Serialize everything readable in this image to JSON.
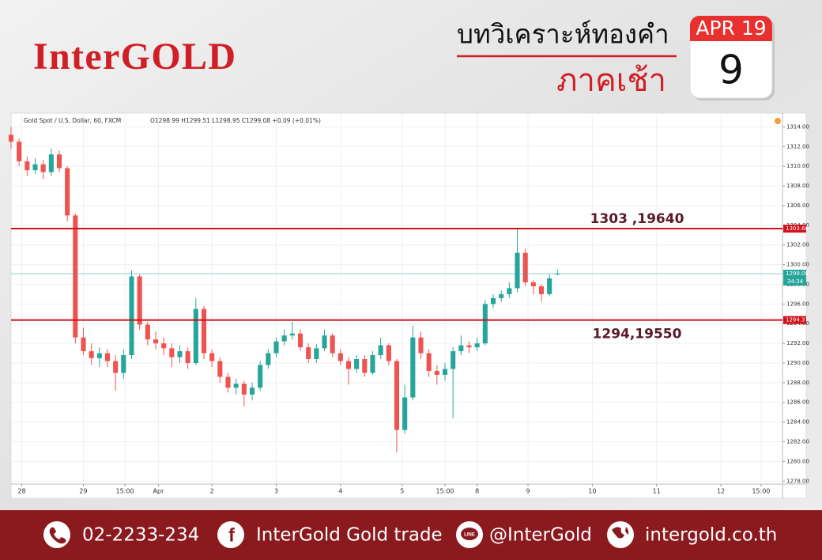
{
  "header": {
    "logo": "InterGOLD",
    "title": "บทวิเคราะห์ทองคำ",
    "subtitle": "ภาคเช้า",
    "calendar_month": "APR 19",
    "calendar_day": "9"
  },
  "chart_data": {
    "type": "candlestick",
    "symbol": "Gold Spot / U.S. Dollar, 60, FXCM",
    "ohlc_text": "O1298.99 H1299.51 L1298.95 C1299.08 +0.09 (+0.01%)",
    "up_color": "#26a69a",
    "down_color": "#ef5350",
    "grid": true,
    "xlim": [
      0,
      288
    ],
    "xticks": [
      {
        "value": 4,
        "label": "28"
      },
      {
        "value": 27,
        "label": "29"
      },
      {
        "value": 42.5,
        "label": "15:00"
      },
      {
        "value": 55,
        "label": "Apr"
      },
      {
        "value": 75,
        "label": "2"
      },
      {
        "value": 99,
        "label": "3"
      },
      {
        "value": 123,
        "label": "4"
      },
      {
        "value": 146,
        "label": "5"
      },
      {
        "value": 162,
        "label": "15:00"
      },
      {
        "value": 174,
        "label": "8"
      },
      {
        "value": 193,
        "label": "9"
      },
      {
        "value": 217,
        "label": "10"
      },
      {
        "value": 241,
        "label": "11"
      },
      {
        "value": 265,
        "label": "12"
      },
      {
        "value": 280,
        "label": "15:00"
      }
    ],
    "ylim": [
      1277.7,
      1315.4
    ],
    "yticks": [
      {
        "value": 1278,
        "label": "1278.00"
      },
      {
        "value": 1280,
        "label": "1280.00"
      },
      {
        "value": 1282,
        "label": "1282.00"
      },
      {
        "value": 1284,
        "label": "1284.00"
      },
      {
        "value": 1286,
        "label": "1286.00"
      },
      {
        "value": 1288,
        "label": "1288.00"
      },
      {
        "value": 1290,
        "label": "1290.00"
      },
      {
        "value": 1292,
        "label": "1292.00"
      },
      {
        "value": 1294,
        "label": "1294.00"
      },
      {
        "value": 1296,
        "label": "1296.00"
      },
      {
        "value": 1298,
        "label": "1298.00"
      },
      {
        "value": 1300,
        "label": "1300.00"
      },
      {
        "value": 1302,
        "label": "1302.00"
      },
      {
        "value": 1304,
        "label": "1304.00"
      },
      {
        "value": 1306,
        "label": "1306.00"
      },
      {
        "value": 1308,
        "label": "1308.00"
      },
      {
        "value": 1310,
        "label": "1310.00"
      },
      {
        "value": 1312,
        "label": "1312.00"
      },
      {
        "value": 1314,
        "label": "1314.00"
      }
    ],
    "x": [
      0,
      3,
      6,
      9,
      12,
      15,
      18,
      21,
      24,
      27,
      30,
      33,
      36,
      39,
      42,
      45,
      48,
      51,
      54,
      57,
      60,
      63,
      66,
      69,
      72,
      75,
      78,
      81,
      84,
      87,
      90,
      93,
      96,
      99,
      102,
      105,
      108,
      111,
      114,
      117,
      120,
      123,
      126,
      129,
      132,
      135,
      138,
      141,
      144,
      147,
      150,
      153,
      156,
      159,
      162,
      165,
      168,
      171,
      174,
      177,
      180,
      183,
      186,
      189,
      192,
      195,
      198,
      201,
      204
    ],
    "open": [
      1313.2,
      1312.5,
      1310.5,
      1309.6,
      1310.2,
      1309.4,
      1311.2,
      1309.8,
      1305.0,
      1292.6,
      1291.2,
      1290.5,
      1291.0,
      1290.2,
      1289.0,
      1290.8,
      1298.8,
      1293.9,
      1292.4,
      1292.0,
      1291.5,
      1290.6,
      1291.2,
      1290.0,
      1295.5,
      1291.0,
      1290.2,
      1288.6,
      1287.5,
      1287.9,
      1286.8,
      1287.5,
      1289.8,
      1291.0,
      1292.2,
      1292.8,
      1293.0,
      1291.6,
      1290.4,
      1291.5,
      1292.8,
      1291.0,
      1290.2,
      1289.4,
      1290.4,
      1289.0,
      1290.8,
      1291.8,
      1290.2,
      1283.2,
      1286.5,
      1292.6,
      1291.0,
      1289.2,
      1288.8,
      1289.4,
      1291.2,
      1291.8,
      1291.6,
      1292.0,
      1296.0,
      1296.6,
      1297.0,
      1297.6,
      1301.2,
      1298.2,
      1297.8,
      1297.0,
      1298.99
    ],
    "high": [
      1314.0,
      1312.8,
      1311.0,
      1310.8,
      1310.6,
      1311.8,
      1311.6,
      1310.0,
      1305.2,
      1293.6,
      1292.0,
      1291.6,
      1291.4,
      1290.8,
      1291.4,
      1299.4,
      1299.0,
      1294.2,
      1293.2,
      1292.6,
      1292.0,
      1291.8,
      1291.6,
      1296.6,
      1295.8,
      1291.4,
      1290.6,
      1289.0,
      1288.4,
      1288.2,
      1288.0,
      1290.2,
      1291.4,
      1292.6,
      1293.4,
      1294.2,
      1293.4,
      1292.0,
      1291.9,
      1293.4,
      1293.0,
      1291.4,
      1290.6,
      1290.8,
      1290.8,
      1291.2,
      1292.6,
      1292.0,
      1290.4,
      1287.8,
      1293.8,
      1293.2,
      1291.4,
      1289.8,
      1290.0,
      1291.6,
      1292.8,
      1292.2,
      1292.6,
      1296.4,
      1297.0,
      1297.4,
      1298.2,
      1303.6,
      1301.6,
      1298.4,
      1298.0,
      1299.0,
      1299.51
    ],
    "low": [
      1311.8,
      1310.0,
      1309.0,
      1309.2,
      1308.7,
      1309.0,
      1309.4,
      1304.4,
      1292.0,
      1290.8,
      1289.8,
      1289.6,
      1289.6,
      1287.2,
      1288.4,
      1290.4,
      1293.4,
      1291.8,
      1291.4,
      1290.8,
      1289.6,
      1290.0,
      1289.4,
      1289.8,
      1290.4,
      1289.6,
      1288.0,
      1287.0,
      1286.8,
      1285.6,
      1286.2,
      1287.2,
      1289.4,
      1290.6,
      1291.8,
      1292.4,
      1291.2,
      1290.0,
      1290.0,
      1291.2,
      1290.6,
      1289.8,
      1287.8,
      1289.0,
      1288.6,
      1288.8,
      1290.4,
      1289.8,
      1280.9,
      1282.8,
      1286.2,
      1290.4,
      1288.6,
      1287.8,
      1288.2,
      1284.4,
      1290.8,
      1291.0,
      1291.2,
      1291.8,
      1295.6,
      1296.2,
      1296.6,
      1297.2,
      1297.8,
      1297.0,
      1296.2,
      1296.8,
      1298.95
    ],
    "close": [
      1312.5,
      1310.5,
      1309.6,
      1310.2,
      1309.4,
      1311.2,
      1309.8,
      1305.0,
      1292.6,
      1291.2,
      1290.5,
      1291.0,
      1290.2,
      1289.0,
      1290.8,
      1298.8,
      1293.9,
      1292.4,
      1292.0,
      1291.5,
      1290.6,
      1291.2,
      1290.0,
      1295.5,
      1291.0,
      1290.2,
      1288.6,
      1287.5,
      1287.9,
      1286.8,
      1287.5,
      1289.8,
      1291.0,
      1292.2,
      1292.8,
      1293.0,
      1291.6,
      1290.4,
      1291.5,
      1292.8,
      1291.0,
      1290.2,
      1289.4,
      1290.4,
      1289.0,
      1290.8,
      1291.8,
      1290.2,
      1283.2,
      1286.5,
      1292.6,
      1291.0,
      1289.2,
      1288.8,
      1289.4,
      1291.2,
      1291.8,
      1291.6,
      1292.0,
      1296.0,
      1296.6,
      1297.0,
      1297.6,
      1301.2,
      1298.2,
      1297.8,
      1297.0,
      1298.6,
      1299.08
    ],
    "levels": [
      {
        "value": 1303.66,
        "label": "1303 ,19640",
        "color": "#d0111b"
      },
      {
        "value": 1294.37,
        "label": "1294,19550",
        "color": "#d0111b"
      }
    ],
    "last": {
      "value": 1299.08,
      "countdown": "34:34",
      "color": "#26a69a"
    }
  },
  "footer": {
    "phone": "02-2233-234",
    "facebook": "InterGold Gold trade",
    "line": "@InterGold",
    "web": "intergold.co.th"
  }
}
